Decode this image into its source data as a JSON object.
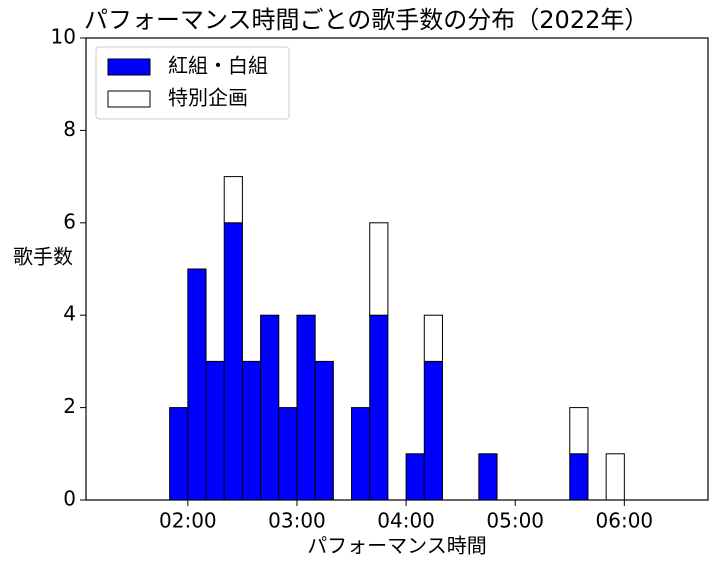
{
  "chart_data": {
    "type": "histogram",
    "title": "パフォーマンス時間ごとの歌手数の分布（2022年）",
    "xlabel": "パフォーマンス時間",
    "ylabel": "歌手数",
    "bins": [
      80,
      90,
      100,
      110,
      120,
      130,
      140,
      150,
      160,
      170,
      180,
      190,
      200,
      210,
      220,
      230,
      240,
      250,
      260,
      270,
      280,
      290,
      300,
      310,
      320,
      330,
      340,
      350,
      360,
      370,
      380,
      390
    ],
    "series": [
      {
        "name": "紅組・白組",
        "color": "#0000ff",
        "values": [
          0,
          0,
          0,
          2,
          5,
          3,
          6,
          3,
          4,
          2,
          4,
          3,
          0,
          2,
          4,
          0,
          1,
          3,
          0,
          0,
          1,
          0,
          0,
          0,
          0,
          1,
          0,
          0,
          0,
          0,
          0
        ]
      },
      {
        "name": "特別企画",
        "color": "#ffffff",
        "values": [
          0,
          0,
          0,
          0,
          0,
          0,
          1,
          0,
          0,
          0,
          0,
          0,
          0,
          0,
          2,
          0,
          0,
          1,
          0,
          0,
          0,
          0,
          0,
          0,
          0,
          1,
          0,
          1,
          0,
          0,
          0
        ]
      }
    ],
    "stacked": true,
    "xlim": [
      64,
      406
    ],
    "xticks": [
      {
        "value": 120,
        "label": "02:00"
      },
      {
        "value": 180,
        "label": "03:00"
      },
      {
        "value": 240,
        "label": "04:00"
      },
      {
        "value": 300,
        "label": "05:00"
      },
      {
        "value": 360,
        "label": "06:00"
      }
    ],
    "ylim": [
      0,
      10
    ],
    "yticks": [
      0,
      2,
      4,
      6,
      8,
      10
    ],
    "legend": "upper left"
  }
}
